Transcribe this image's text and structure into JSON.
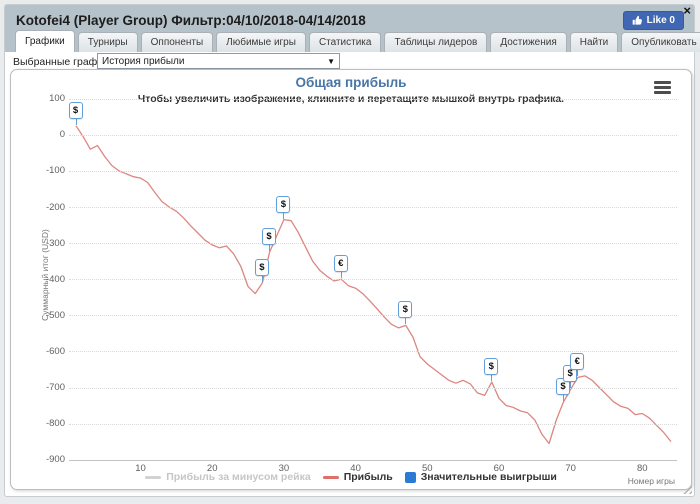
{
  "window": {
    "title": "Kotofei4 (Player Group) Фильтр:04/10/2018-04/14/2018",
    "like_label": "Like 0",
    "close_label": "×"
  },
  "tabs": [
    {
      "label": "Графики",
      "active": true
    },
    {
      "label": "Турниры",
      "active": false
    },
    {
      "label": "Оппоненты",
      "active": false
    },
    {
      "label": "Любимые игры",
      "active": false
    },
    {
      "label": "Статистика",
      "active": false
    },
    {
      "label": "Таблицы лидеров",
      "active": false
    },
    {
      "label": "Достижения",
      "active": false
    },
    {
      "label": "Найти",
      "active": false
    },
    {
      "label": "Опубликовать",
      "active": false
    }
  ],
  "controls": {
    "graph_select_label": "Выбранные графики:",
    "graph_select_value": "История прибыли"
  },
  "chart_data": {
    "type": "line",
    "title": "Общая прибыль",
    "subtitle": "Чтобы увеличить изображение, кликните и перетащите мышкой внутрь графика.",
    "xlabel": "Номер игры",
    "ylabel": "Суммарный итог (USD)",
    "ylim": [
      -900,
      100
    ],
    "yticks": [
      100,
      0,
      -100,
      -200,
      -300,
      -400,
      -500,
      -600,
      -700,
      -800,
      -900
    ],
    "xticks": [
      10,
      20,
      30,
      40,
      50,
      60,
      70,
      80
    ],
    "grid": "dotted",
    "legend_position": "bottom",
    "legend": [
      {
        "label": "Прибыль за минусом рейка",
        "symbol": "line",
        "color": "#d2d2d2",
        "disabled": true
      },
      {
        "label": "Прибыль",
        "symbol": "line",
        "color": "#dd7169",
        "disabled": false
      },
      {
        "label": "Значительные выигрыши",
        "symbol": "square",
        "color": "#2b7bd5",
        "disabled": false
      }
    ],
    "series": [
      {
        "name": "Прибыль за минусом рейка",
        "visible": false
      },
      {
        "name": "Прибыль",
        "visible": true,
        "color": "#dd8680",
        "x_is_game_number": true,
        "values": [
          25,
          -5,
          -40,
          -30,
          -60,
          -85,
          -100,
          -108,
          -116,
          -120,
          -132,
          -160,
          -185,
          -200,
          -212,
          -230,
          -252,
          -272,
          -292,
          -305,
          -313,
          -308,
          -330,
          -365,
          -420,
          -440,
          -410,
          -325,
          -280,
          -235,
          -238,
          -270,
          -310,
          -350,
          -375,
          -392,
          -405,
          -400,
          -418,
          -425,
          -440,
          -460,
          -482,
          -505,
          -525,
          -535,
          -528,
          -560,
          -615,
          -635,
          -650,
          -665,
          -680,
          -688,
          -680,
          -690,
          -715,
          -722,
          -685,
          -730,
          -750,
          -755,
          -765,
          -770,
          -790,
          -830,
          -855,
          -790,
          -740,
          -705,
          -672,
          -668,
          -680,
          -700,
          -720,
          -740,
          -752,
          -758,
          -775,
          -772,
          -785,
          -805,
          -825,
          -850
        ]
      }
    ],
    "markers": [
      {
        "game": 1,
        "symbol": "$"
      },
      {
        "game": 27,
        "symbol": "$"
      },
      {
        "game": 28,
        "symbol": "$"
      },
      {
        "game": 30,
        "symbol": "$"
      },
      {
        "game": 38,
        "symbol": "€"
      },
      {
        "game": 47,
        "symbol": "$"
      },
      {
        "game": 59,
        "symbol": "$"
      },
      {
        "game": 69,
        "symbol": "$"
      },
      {
        "game": 70,
        "symbol": "$"
      },
      {
        "game": 71,
        "symbol": "€"
      }
    ]
  }
}
